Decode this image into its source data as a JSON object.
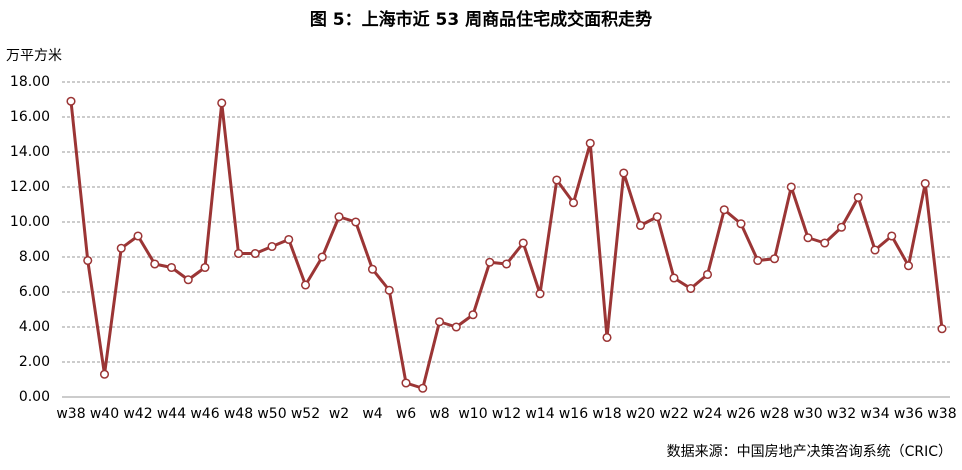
{
  "chart_data": {
    "type": "line",
    "title": "图 5：上海市近 53 周商品住宅成交面积走势",
    "y_axis_label": "万平方米",
    "source": "数据来源：中国房地产决策咨询系统（CRIC）",
    "categories": [
      "w38",
      null,
      "w40",
      null,
      "w42",
      null,
      "w44",
      null,
      "w46",
      null,
      "w48",
      null,
      "w50",
      null,
      "w52",
      null,
      "w2",
      null,
      "w4",
      null,
      "w6",
      null,
      "w8",
      null,
      "w10",
      null,
      "w12",
      null,
      "w14",
      null,
      "w16",
      null,
      "w18",
      null,
      "w20",
      null,
      "w22",
      null,
      "w24",
      null,
      "w26",
      null,
      "w28",
      null,
      "w30",
      null,
      "w32",
      null,
      "w34",
      null,
      "w36",
      null,
      "w38"
    ],
    "series": [
      {
        "name": "成交面积",
        "color": "#9b3535",
        "values": [
          16.9,
          7.8,
          1.3,
          8.5,
          9.2,
          7.6,
          7.4,
          6.7,
          7.4,
          16.8,
          8.2,
          8.2,
          8.6,
          9.0,
          6.4,
          8.0,
          10.3,
          10.0,
          7.3,
          6.1,
          0.8,
          0.5,
          4.3,
          4.0,
          4.7,
          7.7,
          7.6,
          8.8,
          5.9,
          12.4,
          11.1,
          14.5,
          3.4,
          12.8,
          9.8,
          10.3,
          6.8,
          6.2,
          7.0,
          10.7,
          9.9,
          7.8,
          7.9,
          12.0,
          9.1,
          8.8,
          9.7,
          11.4,
          8.4,
          9.2,
          7.5,
          12.2,
          3.9
        ]
      }
    ],
    "ylim": [
      0,
      18
    ],
    "yticks": [
      {
        "value": 0,
        "label": "0.00"
      },
      {
        "value": 2,
        "label": "2.00"
      },
      {
        "value": 4,
        "label": "4.00"
      },
      {
        "value": 6,
        "label": "6.00"
      },
      {
        "value": 8,
        "label": "8.00"
      },
      {
        "value": 10,
        "label": "10.00"
      },
      {
        "value": 12,
        "label": "12.00"
      },
      {
        "value": 14,
        "label": "14.00"
      },
      {
        "value": 16,
        "label": "16.00"
      },
      {
        "value": 18,
        "label": "18.00"
      }
    ],
    "grid": true
  }
}
